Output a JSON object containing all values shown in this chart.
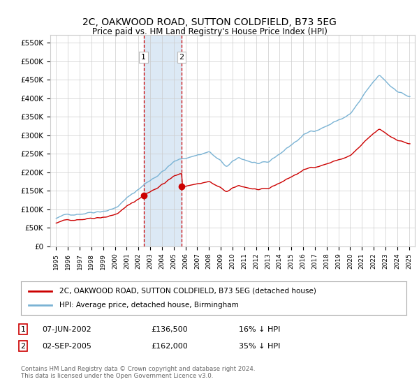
{
  "title": "2C, OAKWOOD ROAD, SUTTON COLDFIELD, B73 5EG",
  "subtitle": "Price paid vs. HM Land Registry's House Price Index (HPI)",
  "ylabel_ticks": [
    "£0",
    "£50K",
    "£100K",
    "£150K",
    "£200K",
    "£250K",
    "£300K",
    "£350K",
    "£400K",
    "£450K",
    "£500K",
    "£550K"
  ],
  "ytick_values": [
    0,
    50000,
    100000,
    150000,
    200000,
    250000,
    300000,
    350000,
    400000,
    450000,
    500000,
    550000
  ],
  "ylim": [
    0,
    570000
  ],
  "transaction1_date": 2002.44,
  "transaction1_price": 136500,
  "transaction1_label": "1",
  "transaction2_date": 2005.67,
  "transaction2_price": 162000,
  "transaction2_label": "2",
  "hpi_color": "#7ab3d4",
  "price_color": "#cc0000",
  "highlight_color": "#dce9f5",
  "vline_color": "#cc0000",
  "legend_price_label": "2C, OAKWOOD ROAD, SUTTON COLDFIELD, B73 5EG (detached house)",
  "legend_hpi_label": "HPI: Average price, detached house, Birmingham",
  "annotation1_date": "07-JUN-2002",
  "annotation1_price": "£136,500",
  "annotation1_hpi": "16% ↓ HPI",
  "annotation2_date": "02-SEP-2005",
  "annotation2_price": "£162,000",
  "annotation2_hpi": "35% ↓ HPI",
  "footer": "Contains HM Land Registry data © Crown copyright and database right 2024.\nThis data is licensed under the Open Government Licence v3.0.",
  "background_color": "#ffffff",
  "label_box_color": "#cc0000"
}
